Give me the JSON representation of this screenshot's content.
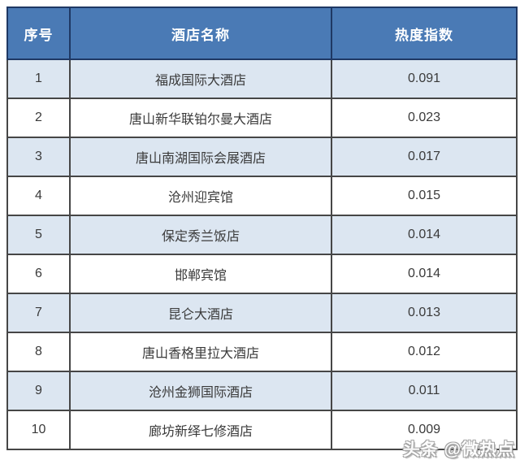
{
  "colors": {
    "header_bg": "#4a7ab5",
    "header_text": "#ffffff",
    "header_border": "#1f3864",
    "border": "#464646",
    "row_alt_bg": "#dce6f1",
    "row_bg": "#ffffff",
    "body_text": "#3a3a3a",
    "watermark_text": "#fdfdfd",
    "watermark_outline": "#a0a0a0"
  },
  "table": {
    "headers": [
      "序号",
      "酒店名称",
      "热度指数"
    ],
    "rows": [
      {
        "rank": "1",
        "hotel": "福成国际大酒店",
        "index": "0.091"
      },
      {
        "rank": "2",
        "hotel": "唐山新华联铂尔曼大酒店",
        "index": "0.023"
      },
      {
        "rank": "3",
        "hotel": "唐山南湖国际会展酒店",
        "index": "0.017"
      },
      {
        "rank": "4",
        "hotel": "沧州迎宾馆",
        "index": "0.015"
      },
      {
        "rank": "5",
        "hotel": "保定秀兰饭店",
        "index": "0.014"
      },
      {
        "rank": "6",
        "hotel": "邯郸宾馆",
        "index": "0.014"
      },
      {
        "rank": "7",
        "hotel": "昆仑大酒店",
        "index": "0.013"
      },
      {
        "rank": "8",
        "hotel": "唐山香格里拉大酒店",
        "index": "0.012"
      },
      {
        "rank": "9",
        "hotel": "沧州金狮国际酒店",
        "index": "0.011"
      },
      {
        "rank": "10",
        "hotel": "廊坊新绎七修酒店",
        "index": "0.009"
      }
    ]
  },
  "watermark": {
    "label": "头条 @微热点"
  },
  "chart_data": {
    "type": "table",
    "title": "",
    "columns": [
      "序号",
      "酒店名称",
      "热度指数"
    ],
    "rows": [
      [
        1,
        "福成国际大酒店",
        0.091
      ],
      [
        2,
        "唐山新华联铂尔曼大酒店",
        0.023
      ],
      [
        3,
        "唐山南湖国际会展酒店",
        0.017
      ],
      [
        4,
        "沧州迎宾馆",
        0.015
      ],
      [
        5,
        "保定秀兰饭店",
        0.014
      ],
      [
        6,
        "邯郸宾馆",
        0.014
      ],
      [
        7,
        "昆仑大酒店",
        0.013
      ],
      [
        8,
        "唐山香格里拉大酒店",
        0.012
      ],
      [
        9,
        "沧州金狮国际酒店",
        0.011
      ],
      [
        10,
        "廊坊新绎七修酒店",
        0.009
      ]
    ],
    "notes": "row 10 value partially obscured by watermark"
  }
}
